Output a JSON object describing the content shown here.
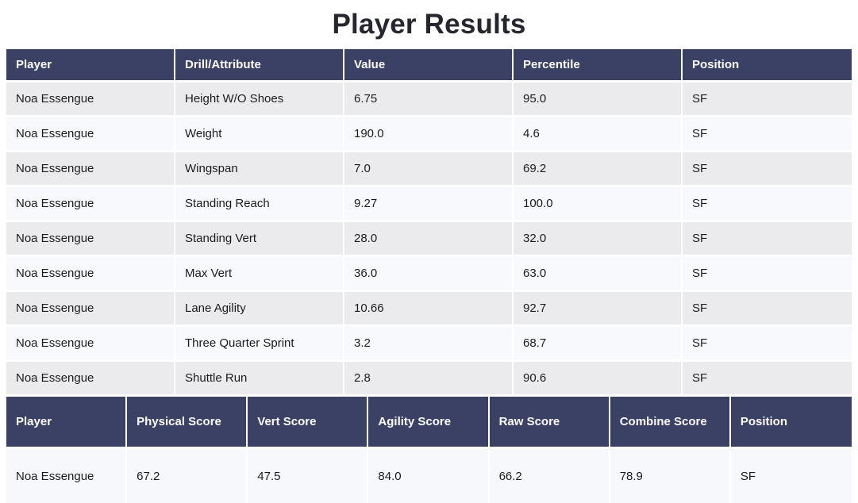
{
  "page": {
    "title": "Player Results"
  },
  "colors": {
    "header_bg": "#3b4065",
    "row_odd": "#ebebee",
    "row_even": "#f8f9fc",
    "row_single": "#f7f8fb",
    "title": "#26262e"
  },
  "results_table": {
    "columns": [
      "Player",
      "Drill/Attribute",
      "Value",
      "Percentile",
      "Position"
    ],
    "rows": [
      [
        "Noa Essengue",
        "Height W/O Shoes",
        "6.75",
        "95.0",
        "SF"
      ],
      [
        "Noa Essengue",
        "Weight",
        "190.0",
        "4.6",
        "SF"
      ],
      [
        "Noa Essengue",
        "Wingspan",
        "7.0",
        "69.2",
        "SF"
      ],
      [
        "Noa Essengue",
        "Standing Reach",
        "9.27",
        "100.0",
        "SF"
      ],
      [
        "Noa Essengue",
        "Standing Vert",
        "28.0",
        "32.0",
        "SF"
      ],
      [
        "Noa Essengue",
        "Max Vert",
        "36.0",
        "63.0",
        "SF"
      ],
      [
        "Noa Essengue",
        "Lane Agility",
        "10.66",
        "92.7",
        "SF"
      ],
      [
        "Noa Essengue",
        "Three Quarter Sprint",
        "3.2",
        "68.7",
        "SF"
      ],
      [
        "Noa Essengue",
        "Shuttle Run",
        "2.8",
        "90.6",
        "SF"
      ]
    ]
  },
  "scores_table": {
    "columns": [
      "Player",
      "Physical Score",
      "Vert Score",
      "Agility Score",
      "Raw Score",
      "Combine Score",
      "Position"
    ],
    "rows": [
      [
        "Noa Essengue",
        "67.2",
        "47.5",
        "84.0",
        "66.2",
        "78.9",
        "SF"
      ]
    ]
  }
}
